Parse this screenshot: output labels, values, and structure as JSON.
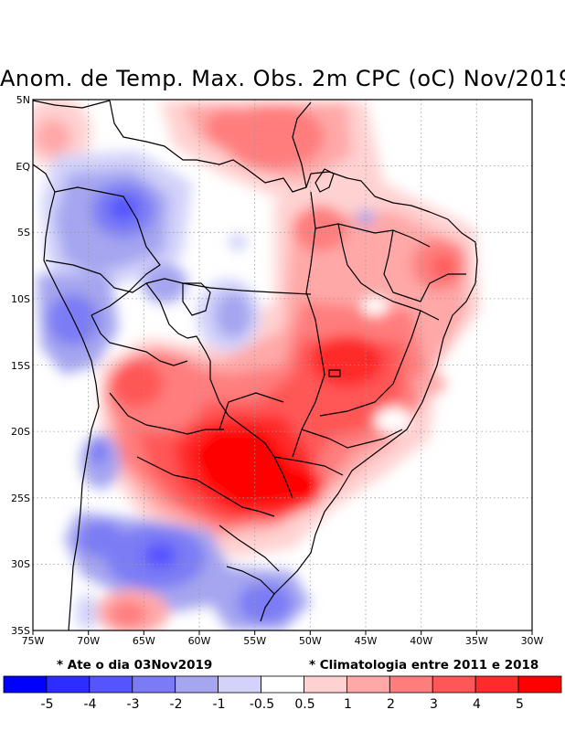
{
  "title": "Anom. de Temp. Max. Obs. 2m CPC (oC) Nov/2019",
  "map": {
    "region": "South America / Brazil",
    "lon_range": [
      -75,
      -30
    ],
    "lat_range": [
      -35,
      5
    ],
    "lon_ticks": [
      "75W",
      "70W",
      "65W",
      "60W",
      "55W",
      "50W",
      "45W",
      "40W",
      "35W",
      "30W"
    ],
    "lat_ticks": [
      "5N",
      "EQ",
      "5S",
      "10S",
      "15S",
      "20S",
      "25S",
      "30S",
      "35S"
    ],
    "gridlines": "dotted",
    "warm_anomalies": [
      {
        "name": "Paraguay / Mato Grosso do Sul core",
        "lon": -57,
        "lat": -22,
        "value": 5
      },
      {
        "name": "Central Brazil",
        "lon": -46,
        "lat": -15,
        "value": 4
      },
      {
        "name": "Northeast Brazil",
        "lon": -39,
        "lat": -8,
        "value": 3
      },
      {
        "name": "Bolivia / Mato Grosso",
        "lon": -62,
        "lat": -17,
        "value": 3
      },
      {
        "name": "Amazon north",
        "lon": -52,
        "lat": 2,
        "value": 2
      }
    ],
    "cool_anomalies": [
      {
        "name": "Western Amazon",
        "lon": -68,
        "lat": -3,
        "value": -3
      },
      {
        "name": "Peru / Acre",
        "lon": -71,
        "lat": -12,
        "value": -2
      },
      {
        "name": "Argentina north",
        "lon": -65,
        "lat": -29,
        "value": -3
      },
      {
        "name": "Uruguay / RS",
        "lon": -55,
        "lat": -32,
        "value": -2
      },
      {
        "name": "Rondonia",
        "lon": -57,
        "lat": -11,
        "value": -1
      }
    ]
  },
  "notes": {
    "left": "* Ate o dia 03Nov2019",
    "right": "* Climatologia entre 2011 e 2018"
  },
  "colorbar": {
    "colors": [
      "#0000ff",
      "#2d2dff",
      "#5555ff",
      "#7b7bf5",
      "#a5a5f0",
      "#d2d2fa",
      "#ffffff",
      "#ffd2d2",
      "#ffa8a8",
      "#ff7d7d",
      "#ff5757",
      "#ff2a2a",
      "#ff0000"
    ],
    "labels": [
      "-5",
      "-4",
      "-3",
      "-2",
      "-1",
      "-0.5",
      "0.5",
      "1",
      "2",
      "3",
      "4",
      "5"
    ]
  }
}
